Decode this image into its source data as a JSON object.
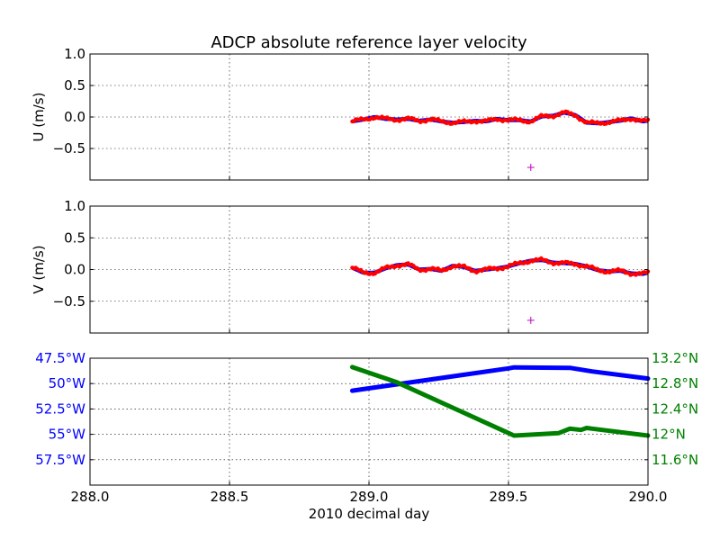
{
  "title": "ADCP absolute reference layer velocity",
  "colors": {
    "raw_points": "#ff0000",
    "smoothed": "#0000ff",
    "marker": "#c000c0",
    "longitude": "#0000ff",
    "latitude": "#008000"
  },
  "chart_data": [
    {
      "id": "u",
      "type": "scatter",
      "ylabel": "U (m/s)",
      "xlim": [
        288.0,
        290.0
      ],
      "ylim": [
        -1.0,
        1.0
      ],
      "xticks": [
        288.0,
        288.5,
        289.0,
        289.5,
        290.0
      ],
      "yticks": [
        1.0,
        0.5,
        0.0,
        -0.5
      ],
      "ytick_labels": [
        "1.0",
        "0.5",
        "0.0",
        "−0.5"
      ],
      "grid": true,
      "series": [
        {
          "style": "red-dots-over-blue-line",
          "x": [
            288.94,
            288.98,
            289.02,
            289.06,
            289.1,
            289.14,
            289.18,
            289.22,
            289.26,
            289.3,
            289.34,
            289.38,
            289.42,
            289.46,
            289.5,
            289.54,
            289.58,
            289.62,
            289.66,
            289.7,
            289.74,
            289.78,
            289.82,
            289.86,
            289.9,
            289.94,
            289.98,
            290.0
          ],
          "y": [
            -0.07,
            -0.04,
            0.0,
            -0.03,
            -0.04,
            -0.03,
            -0.06,
            -0.04,
            -0.07,
            -0.09,
            -0.08,
            -0.06,
            -0.07,
            -0.03,
            -0.05,
            -0.05,
            -0.07,
            0.01,
            0.02,
            0.07,
            0.03,
            -0.09,
            -0.1,
            -0.08,
            -0.06,
            -0.02,
            -0.07,
            -0.06
          ]
        }
      ],
      "markers": [
        {
          "x": 289.58,
          "y": -0.8,
          "symbol": "+"
        }
      ]
    },
    {
      "id": "v",
      "type": "scatter",
      "ylabel": "V (m/s)",
      "xlim": [
        288.0,
        290.0
      ],
      "ylim": [
        -1.0,
        1.0
      ],
      "xticks": [
        288.0,
        288.5,
        289.0,
        289.5,
        290.0
      ],
      "yticks": [
        1.0,
        0.5,
        0.0,
        -0.5
      ],
      "ytick_labels": [
        "1.0",
        "0.5",
        "0.0",
        "−0.5"
      ],
      "grid": true,
      "series": [
        {
          "style": "red-dots-over-blue-line",
          "x": [
            288.94,
            288.98,
            289.02,
            289.06,
            289.1,
            289.14,
            289.18,
            289.22,
            289.26,
            289.3,
            289.34,
            289.38,
            289.42,
            289.46,
            289.5,
            289.54,
            289.58,
            289.62,
            289.66,
            289.7,
            289.74,
            289.78,
            289.82,
            289.86,
            289.9,
            289.94,
            289.98,
            290.0
          ],
          "y": [
            0.03,
            -0.05,
            -0.05,
            0.02,
            0.07,
            0.08,
            0.0,
            0.01,
            -0.02,
            0.06,
            0.04,
            -0.02,
            0.0,
            0.02,
            0.05,
            0.1,
            0.14,
            0.15,
            0.11,
            0.1,
            0.09,
            0.05,
            -0.01,
            -0.03,
            -0.02,
            -0.06,
            -0.07,
            -0.05
          ]
        }
      ],
      "markers": [
        {
          "x": 289.58,
          "y": -0.8,
          "symbol": "+"
        }
      ]
    },
    {
      "id": "position",
      "type": "line",
      "xlabel": "2010 decimal day",
      "xlim": [
        288.0,
        290.0
      ],
      "xticks": [
        288.0,
        288.5,
        289.0,
        289.5,
        290.0
      ],
      "xtick_labels": [
        "288.0",
        "288.5",
        "289.0",
        "289.5",
        "290.0"
      ],
      "grid": true,
      "left_axis": {
        "quantity": "longitude",
        "ylim": [
          -60.0,
          -47.5
        ],
        "ticks": [
          -47.5,
          -50.0,
          -52.5,
          -55.0,
          -57.5
        ],
        "tick_labels": [
          "47.5°W",
          "50°W",
          "52.5°W",
          "55°W",
          "57.5°W"
        ]
      },
      "right_axis": {
        "quantity": "latitude",
        "ylim": [
          11.2,
          13.2
        ],
        "ticks": [
          13.2,
          12.8,
          12.4,
          12.0,
          11.6
        ],
        "tick_labels": [
          "13.2°N",
          "12.8°N",
          "12.4°N",
          "12°N",
          "11.6°N"
        ]
      },
      "series": [
        {
          "axis": "left",
          "x": [
            288.94,
            289.5,
            289.52,
            289.72,
            289.8,
            290.0
          ],
          "y": [
            -50.7,
            -48.5,
            -48.4,
            -48.45,
            -48.8,
            -49.5
          ]
        },
        {
          "axis": "right",
          "x": [
            288.94,
            289.1,
            289.3,
            289.5,
            289.52,
            289.6,
            289.68,
            289.72,
            289.76,
            289.78,
            289.8,
            290.0
          ],
          "y": [
            13.06,
            12.82,
            12.42,
            12.02,
            11.98,
            12.0,
            12.02,
            12.09,
            12.07,
            12.1,
            12.09,
            11.98
          ]
        }
      ]
    }
  ]
}
